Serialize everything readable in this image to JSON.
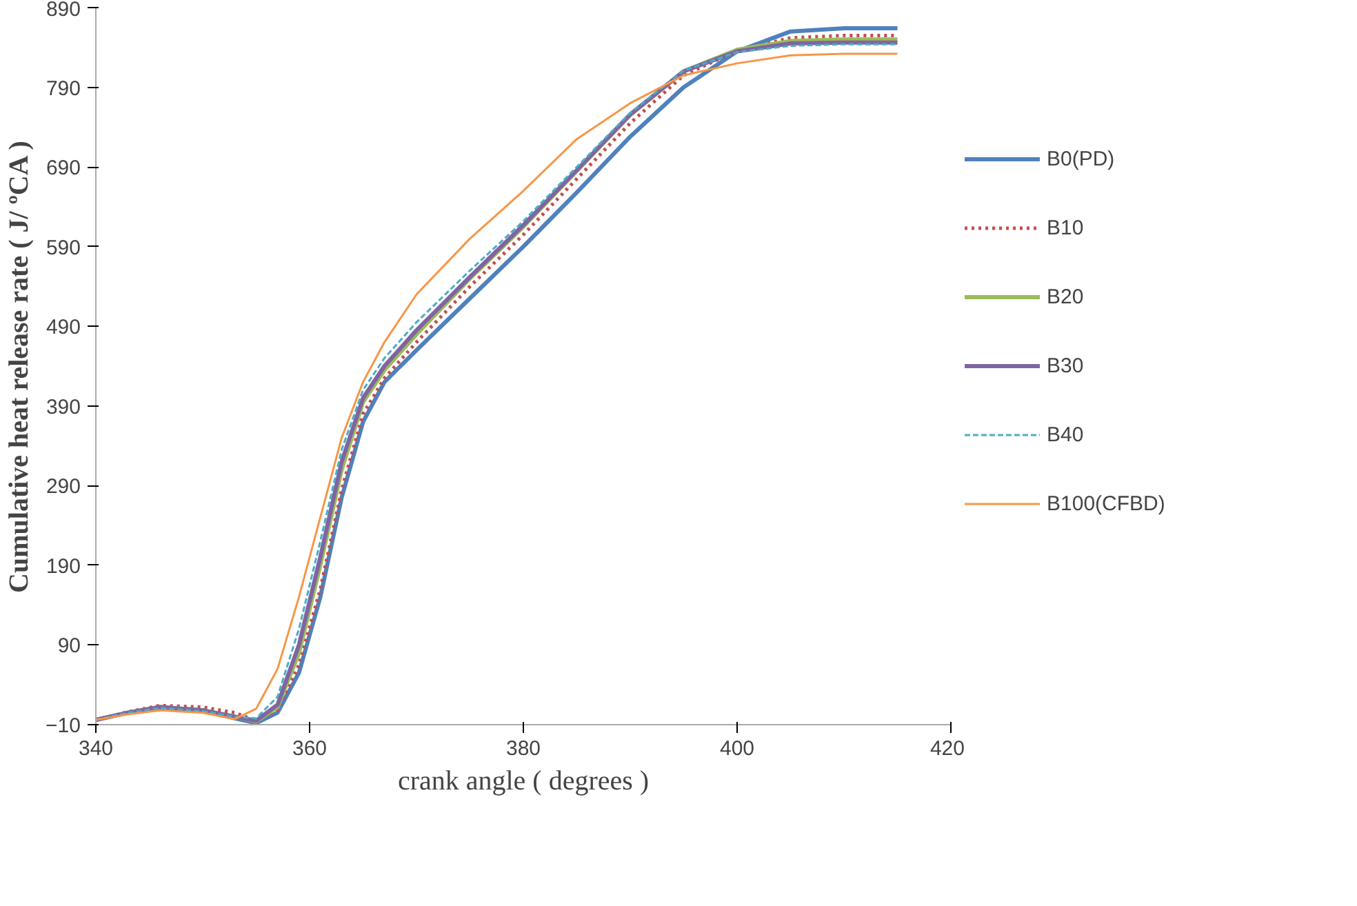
{
  "chart_data": {
    "type": "line",
    "xlabel": "crank angle ( degrees )",
    "ylabel": "Cumulative heat release rate ( J/ ºCA )",
    "x": [
      340,
      343,
      346,
      350,
      353,
      355,
      357,
      359,
      361,
      363,
      365,
      367,
      370,
      375,
      380,
      385,
      390,
      395,
      400,
      405,
      410,
      415
    ],
    "series": [
      {
        "name": "B0(PD)",
        "color": "#4f81bd",
        "line_style": "solid",
        "values": [
          -4,
          5,
          12,
          8,
          -2,
          -8,
          5,
          55,
          150,
          275,
          370,
          420,
          460,
          525,
          590,
          658,
          728,
          790,
          835,
          860,
          864,
          864
        ]
      },
      {
        "name": "B10",
        "color": "#c0504d",
        "line_style": "dotted",
        "values": [
          -4,
          6,
          14,
          12,
          5,
          -5,
          8,
          65,
          160,
          285,
          380,
          425,
          470,
          540,
          605,
          675,
          745,
          805,
          836,
          852,
          855,
          855
        ]
      },
      {
        "name": "B20",
        "color": "#9bbb59",
        "line_style": "solid",
        "values": [
          -4,
          5,
          12,
          8,
          0,
          -6,
          12,
          80,
          190,
          310,
          395,
          435,
          480,
          550,
          615,
          685,
          755,
          810,
          837,
          848,
          850,
          850
        ]
      },
      {
        "name": "B30",
        "color": "#8064a2",
        "line_style": "solid",
        "values": [
          -4,
          5,
          12,
          8,
          0,
          -5,
          15,
          90,
          200,
          320,
          400,
          440,
          485,
          552,
          617,
          686,
          756,
          810,
          835,
          845,
          846,
          846
        ]
      },
      {
        "name": "B40",
        "color": "#4bacc6",
        "line_style": "dashed",
        "values": [
          -4,
          5,
          11,
          7,
          0,
          -2,
          25,
          110,
          220,
          335,
          410,
          450,
          495,
          560,
          622,
          690,
          758,
          811,
          834,
          842,
          844,
          844
        ]
      },
      {
        "name": "B100(CFBD)",
        "color": "#f79646",
        "line_style": "solid",
        "values": [
          -4,
          3,
          8,
          5,
          -3,
          10,
          60,
          150,
          250,
          350,
          420,
          470,
          530,
          600,
          660,
          725,
          770,
          805,
          820,
          830,
          832,
          832
        ]
      }
    ],
    "xlim": [
      340,
      420
    ],
    "xticks": [
      340,
      360,
      380,
      400,
      420
    ],
    "ylim": [
      -10,
      890
    ],
    "yticks": [
      -10,
      90,
      190,
      290,
      390,
      490,
      590,
      690,
      790,
      890
    ],
    "grid": false,
    "legend": "right",
    "marker": "none"
  }
}
